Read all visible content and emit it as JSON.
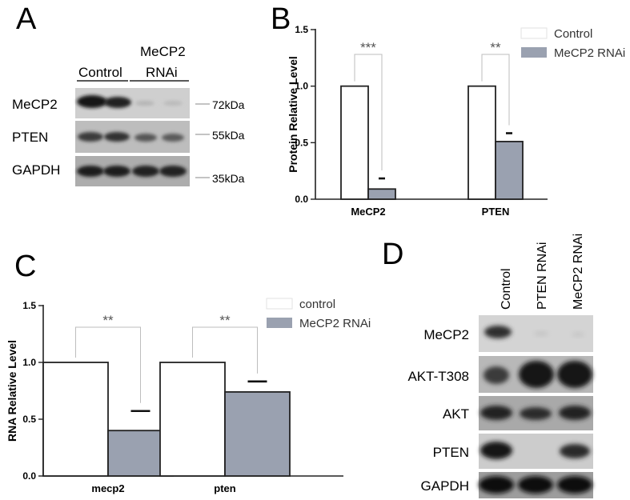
{
  "panels": {
    "A": {
      "letter": "A",
      "groups": [
        "Control",
        "MeCP2",
        "RNAi"
      ],
      "rows": [
        {
          "label": "MeCP2",
          "kda": "72kDa"
        },
        {
          "label": "PTEN",
          "kda": "55kDa"
        },
        {
          "label": "GAPDH",
          "kda": "35kDa"
        }
      ]
    },
    "B": {
      "letter": "B"
    },
    "C": {
      "letter": "C"
    },
    "D": {
      "letter": "D",
      "lanes": [
        "Control",
        "PTEN RNAi",
        "MeCP2 RNAi"
      ],
      "rows": [
        "MeCP2",
        "AKT-T308",
        "AKT",
        "PTEN",
        "GAPDH"
      ]
    }
  },
  "chart_data": [
    {
      "panel": "B",
      "type": "bar",
      "ylabel": "Protein Relative Level",
      "categories": [
        "MeCP2",
        "PTEN"
      ],
      "series": [
        {
          "name": "Control",
          "values": [
            1.0,
            1.0
          ],
          "color": "#ffffff"
        },
        {
          "name": "MeCP2 RNAi",
          "values": [
            0.09,
            0.51
          ],
          "errors": [
            0.03,
            0.01
          ],
          "color": "#9aa1b0"
        }
      ],
      "ylim": [
        0,
        1.5
      ],
      "yticks": [
        "0.0",
        "0.5",
        "1.0",
        "1.5"
      ],
      "significance": [
        "***",
        "**"
      ],
      "legend": "top-right"
    },
    {
      "panel": "C",
      "type": "bar",
      "ylabel": "RNA Relative Level",
      "categories": [
        "mecp2",
        "pten"
      ],
      "series": [
        {
          "name": "control",
          "values": [
            1.0,
            1.0
          ],
          "color": "#ffffff"
        },
        {
          "name": "MeCP2 RNAi",
          "values": [
            0.4,
            0.74
          ],
          "errors": [
            0.13,
            0.05
          ],
          "color": "#9aa1b0"
        }
      ],
      "ylim": [
        0,
        1.5
      ],
      "yticks": [
        "0.0",
        "0.5",
        "1.0",
        "1.5"
      ],
      "significance": [
        "**",
        "**"
      ],
      "legend": "top-right"
    }
  ]
}
